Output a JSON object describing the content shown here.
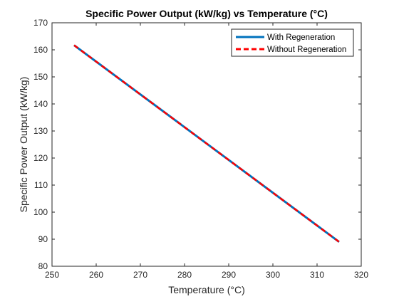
{
  "chart_data": {
    "type": "line",
    "title": "Specific Power Output (kW/kg) vs Temperature (°C)",
    "xlabel": "Temperature (°C)",
    "ylabel": "Specific Power Output (kW/kg)",
    "xlim": [
      250,
      320
    ],
    "ylim": [
      80,
      170
    ],
    "xticks": [
      250,
      260,
      270,
      280,
      290,
      300,
      310,
      320
    ],
    "yticks": [
      80,
      90,
      100,
      110,
      120,
      130,
      140,
      150,
      160,
      170
    ],
    "grid": false,
    "legend_position": "top-right",
    "series": [
      {
        "name": "With Regeneration",
        "x": [
          255,
          315
        ],
        "y": [
          161.7,
          89.0
        ],
        "color": "#0072BD",
        "style": "solid"
      },
      {
        "name": "Without Regeneration",
        "x": [
          255,
          315
        ],
        "y": [
          161.7,
          89.0
        ],
        "color": "#FF0000",
        "style": "dashed"
      }
    ]
  }
}
